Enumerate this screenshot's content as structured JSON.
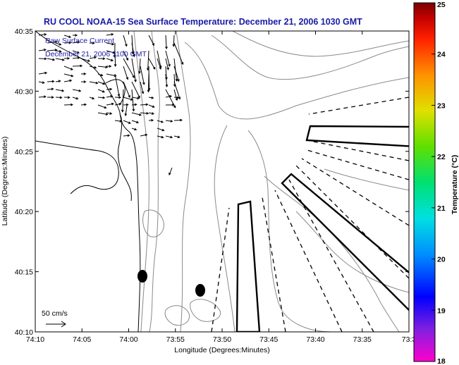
{
  "header": {
    "title": "RU COOL  NOAA-15  Sea Surface Temperature:  December 21, 2006 1030 GMT",
    "overlay_line1": "Raw Surface Current",
    "overlay_line2": "December 21, 2006 1100 GMT"
  },
  "map": {
    "x_axis_label": "Longitude (Degrees:Minutes)",
    "y_axis_label": "Latitude (Degrees:Minutes)",
    "x_ticks": [
      "74:10",
      "74:05",
      "74:00",
      "73:55",
      "73:50",
      "73:45",
      "73:40",
      "73:35",
      "73:3"
    ],
    "y_ticks": [
      "40:35",
      "40:30",
      "40:25",
      "40:20",
      "40:15",
      "40:10"
    ],
    "lon_range_min": [
      -74.1667,
      -73.5
    ],
    "lat_range_min": [
      40.1667,
      40.5833
    ],
    "scale_label": "50 cm/s",
    "colors": {
      "frame": "#000000",
      "contour": "#8a8a8a",
      "coast": "#000000",
      "vectors": "#000000",
      "text_blue": "#1a1aa6"
    }
  },
  "colorbar": {
    "label": "Temperature (°C)",
    "range": [
      18,
      25
    ],
    "ticks": [
      "25",
      "24",
      "23",
      "22",
      "21",
      "20",
      "19",
      "18"
    ],
    "stops": [
      "#ff00cc",
      "#8020e0",
      "#0000ff",
      "#0090ff",
      "#00e0e0",
      "#00e070",
      "#60e000",
      "#e0e000",
      "#ff9000",
      "#ff2000",
      "#c00000",
      "#7a0000"
    ]
  }
}
